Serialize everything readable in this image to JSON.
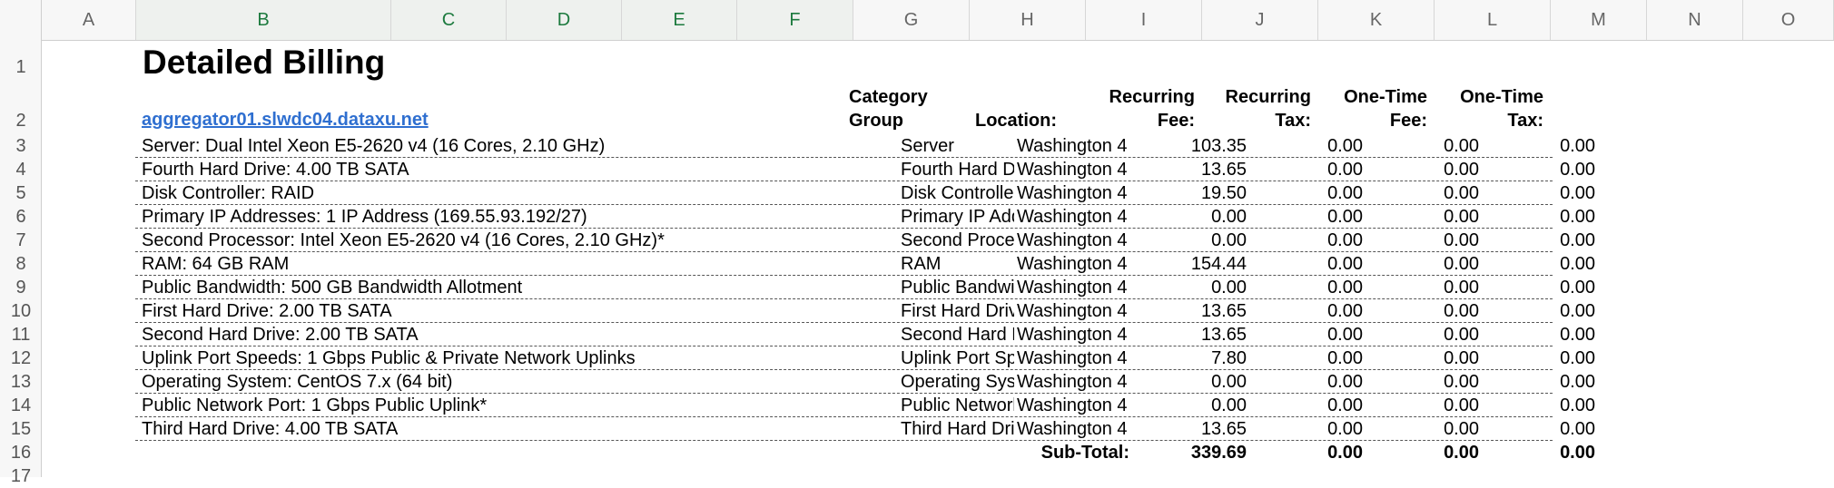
{
  "columns": [
    "A",
    "B",
    "C",
    "D",
    "E",
    "F",
    "G",
    "H",
    "I",
    "J",
    "K",
    "L",
    "M",
    "N",
    "O"
  ],
  "row_numbers": [
    "1",
    "2",
    "3",
    "4",
    "5",
    "6",
    "7",
    "8",
    "9",
    "10",
    "11",
    "12",
    "13",
    "14",
    "15",
    "16",
    "17"
  ],
  "title": "Detailed Billing",
  "server_link": "aggregator01.slwdc04.dataxu.net",
  "headers": {
    "category_line1": "Category",
    "category_line2": "Group",
    "location": "Location:",
    "recurring_fee_line1": "Recurring",
    "recurring_fee_line2": "Fee:",
    "recurring_tax_line1": "Recurring",
    "recurring_tax_line2": "Tax:",
    "onetime_fee_line1": "One-Time",
    "onetime_fee_line2": "Fee:",
    "onetime_tax_line1": "One-Time",
    "onetime_tax_line2": "Tax:"
  },
  "rows": [
    {
      "description": "Server: Dual Intel Xeon E5-2620 v4 (16 Cores, 2.10 GHz)",
      "category": "Server",
      "location": "Washington 4",
      "recurring_fee": "103.35",
      "recurring_tax": "0.00",
      "onetime_fee": "0.00",
      "onetime_tax": "0.00"
    },
    {
      "description": "Fourth Hard Drive: 4.00 TB SATA",
      "category": "Fourth Hard Drive",
      "location": "Washington 4",
      "recurring_fee": "13.65",
      "recurring_tax": "0.00",
      "onetime_fee": "0.00",
      "onetime_tax": "0.00"
    },
    {
      "description": "Disk Controller: RAID",
      "category": "Disk Controller",
      "location": "Washington 4",
      "recurring_fee": "19.50",
      "recurring_tax": "0.00",
      "onetime_fee": "0.00",
      "onetime_tax": "0.00"
    },
    {
      "description": "Primary IP Addresses: 1 IP Address (169.55.93.192/27)",
      "category": "Primary IP Addresses",
      "location": "Washington 4",
      "recurring_fee": "0.00",
      "recurring_tax": "0.00",
      "onetime_fee": "0.00",
      "onetime_tax": "0.00"
    },
    {
      "description": "Second Processor: Intel Xeon E5-2620 v4 (16 Cores, 2.10 GHz)*",
      "category": "Second Processor",
      "location": "Washington 4",
      "recurring_fee": "0.00",
      "recurring_tax": "0.00",
      "onetime_fee": "0.00",
      "onetime_tax": "0.00"
    },
    {
      "description": "RAM: 64 GB RAM",
      "category": "RAM",
      "location": "Washington 4",
      "recurring_fee": "154.44",
      "recurring_tax": "0.00",
      "onetime_fee": "0.00",
      "onetime_tax": "0.00"
    },
    {
      "description": "Public Bandwidth: 500 GB Bandwidth Allotment",
      "category": "Public Bandwidth",
      "location": "Washington 4",
      "recurring_fee": "0.00",
      "recurring_tax": "0.00",
      "onetime_fee": "0.00",
      "onetime_tax": "0.00"
    },
    {
      "description": "First Hard Drive: 2.00 TB SATA",
      "category": "First Hard Drive",
      "location": "Washington 4",
      "recurring_fee": "13.65",
      "recurring_tax": "0.00",
      "onetime_fee": "0.00",
      "onetime_tax": "0.00"
    },
    {
      "description": "Second Hard Drive: 2.00 TB SATA",
      "category": "Second Hard Drive",
      "location": "Washington 4",
      "recurring_fee": "13.65",
      "recurring_tax": "0.00",
      "onetime_fee": "0.00",
      "onetime_tax": "0.00"
    },
    {
      "description": "Uplink Port Speeds: 1 Gbps Public & Private Network Uplinks",
      "category": "Uplink Port Speeds",
      "location": "Washington 4",
      "recurring_fee": "7.80",
      "recurring_tax": "0.00",
      "onetime_fee": "0.00",
      "onetime_tax": "0.00"
    },
    {
      "description": "Operating System: CentOS 7.x (64 bit)",
      "category": "Operating System",
      "location": "Washington 4",
      "recurring_fee": "0.00",
      "recurring_tax": "0.00",
      "onetime_fee": "0.00",
      "onetime_tax": "0.00"
    },
    {
      "description": "Public Network Port: 1 Gbps Public Uplink*",
      "category": "Public Network Port",
      "location": "Washington 4",
      "recurring_fee": "0.00",
      "recurring_tax": "0.00",
      "onetime_fee": "0.00",
      "onetime_tax": "0.00"
    },
    {
      "description": "Third Hard Drive: 4.00 TB SATA",
      "category": "Third Hard Drive",
      "location": "Washington 4",
      "recurring_fee": "13.65",
      "recurring_tax": "0.00",
      "onetime_fee": "0.00",
      "onetime_tax": "0.00"
    }
  ],
  "subtotal": {
    "label": "Sub-Total:",
    "recurring_fee": "339.69",
    "recurring_tax": "0.00",
    "onetime_fee": "0.00",
    "onetime_tax": "0.00"
  },
  "colors": {
    "link": "#2f6fd0",
    "selected_header": "#1c7a3e",
    "header_bg": "#f7f7f7"
  }
}
